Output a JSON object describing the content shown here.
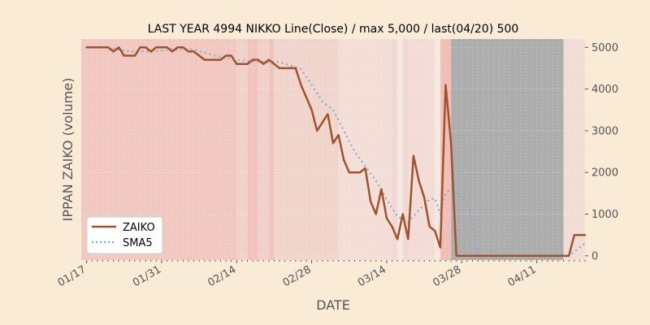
{
  "chart_data": {
    "type": "line",
    "title": "LAST YEAR 4994 NIKKO Line(Close) / max 5,000 / last(04/20) 500",
    "xlabel": "DATE",
    "ylabel": "IPPAN ZAIKO (volume)",
    "ylim": [
      -100,
      5200
    ],
    "yticks": [
      0,
      1000,
      2000,
      3000,
      4000,
      5000
    ],
    "ytick_labels": [
      "0",
      "1000",
      "2000",
      "3000",
      "4000",
      "5000"
    ],
    "x_range_days": [
      -1,
      93
    ],
    "xticks": [
      {
        "day": 0,
        "label": "01/17"
      },
      {
        "day": 14,
        "label": "01/31"
      },
      {
        "day": 28,
        "label": "02/14"
      },
      {
        "day": 42,
        "label": "02/28"
      },
      {
        "day": 56,
        "label": "03/14"
      },
      {
        "day": 70,
        "label": "03/28"
      },
      {
        "day": 84,
        "label": "04/11"
      }
    ],
    "legend_position": "lower-left",
    "series": [
      {
        "name": "ZAIKO",
        "color": "#a0522d",
        "style": "solid",
        "points": [
          [
            0,
            5000
          ],
          [
            1,
            5000
          ],
          [
            2,
            5000
          ],
          [
            3,
            5000
          ],
          [
            4,
            5000
          ],
          [
            5,
            4900
          ],
          [
            6,
            5000
          ],
          [
            7,
            4800
          ],
          [
            8,
            4800
          ],
          [
            9,
            4800
          ],
          [
            10,
            5000
          ],
          [
            11,
            5000
          ],
          [
            12,
            4900
          ],
          [
            13,
            5000
          ],
          [
            14,
            5000
          ],
          [
            15,
            5000
          ],
          [
            16,
            4900
          ],
          [
            17,
            5000
          ],
          [
            18,
            5000
          ],
          [
            19,
            4900
          ],
          [
            20,
            4900
          ],
          [
            21,
            4800
          ],
          [
            22,
            4700
          ],
          [
            23,
            4700
          ],
          [
            24,
            4700
          ],
          [
            25,
            4700
          ],
          [
            26,
            4800
          ],
          [
            27,
            4800
          ],
          [
            28,
            4600
          ],
          [
            29,
            4600
          ],
          [
            30,
            4600
          ],
          [
            31,
            4700
          ],
          [
            32,
            4700
          ],
          [
            33,
            4600
          ],
          [
            34,
            4700
          ],
          [
            35,
            4600
          ],
          [
            36,
            4500
          ],
          [
            37,
            4500
          ],
          [
            38,
            4500
          ],
          [
            39,
            4500
          ],
          [
            40,
            4100
          ],
          [
            41,
            3800
          ],
          [
            42,
            3500
          ],
          [
            43,
            3000
          ],
          [
            44,
            3200
          ],
          [
            45,
            3400
          ],
          [
            46,
            2700
          ],
          [
            47,
            2900
          ],
          [
            48,
            2300
          ],
          [
            49,
            2000
          ],
          [
            50,
            2000
          ],
          [
            51,
            2000
          ],
          [
            52,
            2100
          ],
          [
            53,
            1300
          ],
          [
            54,
            1000
          ],
          [
            55,
            1600
          ],
          [
            56,
            900
          ],
          [
            57,
            700
          ],
          [
            58,
            400
          ],
          [
            59,
            1000
          ],
          [
            60,
            400
          ],
          [
            61,
            2400
          ],
          [
            62,
            1800
          ],
          [
            63,
            1400
          ],
          [
            64,
            700
          ],
          [
            65,
            600
          ],
          [
            66,
            200
          ],
          [
            67,
            4100
          ],
          [
            68,
            2700
          ],
          [
            69,
            0
          ],
          [
            70,
            0
          ],
          [
            71,
            0
          ],
          [
            72,
            0
          ],
          [
            73,
            0
          ],
          [
            74,
            0
          ],
          [
            75,
            0
          ],
          [
            76,
            0
          ],
          [
            77,
            0
          ],
          [
            78,
            0
          ],
          [
            79,
            0
          ],
          [
            80,
            0
          ],
          [
            81,
            0
          ],
          [
            82,
            0
          ],
          [
            83,
            0
          ],
          [
            84,
            0
          ],
          [
            85,
            0
          ],
          [
            86,
            0
          ],
          [
            87,
            0
          ],
          [
            88,
            0
          ],
          [
            89,
            0
          ],
          [
            90,
            0
          ],
          [
            91,
            500
          ],
          [
            92,
            500
          ],
          [
            93,
            500
          ]
        ]
      },
      {
        "name": "SMA5",
        "color": "#7fb0cf",
        "style": "dotted",
        "points": [
          [
            4,
            5000
          ],
          [
            8,
            4900
          ],
          [
            12,
            4900
          ],
          [
            16,
            4950
          ],
          [
            20,
            4950
          ],
          [
            24,
            4800
          ],
          [
            28,
            4700
          ],
          [
            32,
            4650
          ],
          [
            36,
            4650
          ],
          [
            40,
            4480
          ],
          [
            42,
            4100
          ],
          [
            44,
            3700
          ],
          [
            46,
            3500
          ],
          [
            48,
            3000
          ],
          [
            50,
            2500
          ],
          [
            52,
            2150
          ],
          [
            54,
            1800
          ],
          [
            56,
            1350
          ],
          [
            58,
            950
          ],
          [
            60,
            800
          ],
          [
            62,
            1100
          ],
          [
            64,
            1350
          ],
          [
            65,
            1380
          ],
          [
            66,
            1000
          ],
          [
            67,
            1500
          ],
          [
            68,
            1600
          ],
          [
            70,
            1400
          ],
          [
            71,
            1350
          ],
          [
            72,
            800
          ],
          [
            73,
            0
          ],
          [
            80,
            0
          ],
          [
            85,
            0
          ],
          [
            88,
            0
          ],
          [
            90,
            0
          ],
          [
            91,
            100
          ],
          [
            92,
            200
          ],
          [
            93,
            300
          ]
        ]
      }
    ],
    "background_bands": [
      {
        "from": -1,
        "to": 28,
        "color": "#f2a89c",
        "opacity": 0.55
      },
      {
        "from": 28,
        "to": 30,
        "color": "#f4c0b4",
        "opacity": 0.6
      },
      {
        "from": 30,
        "to": 32,
        "color": "#f2a89c",
        "opacity": 0.6
      },
      {
        "from": 32,
        "to": 34,
        "color": "#f4b8ac",
        "opacity": 0.55
      },
      {
        "from": 34,
        "to": 35,
        "color": "#f2a89c",
        "opacity": 0.6
      },
      {
        "from": 35,
        "to": 47,
        "color": "#f4c4b8",
        "opacity": 0.6
      },
      {
        "from": 47,
        "to": 57,
        "color": "#f6d7cd",
        "opacity": 0.65
      },
      {
        "from": 57,
        "to": 58,
        "color": "#f4c4b8",
        "opacity": 0.5
      },
      {
        "from": 58,
        "to": 59,
        "color": "#f8e4dc",
        "opacity": 0.7
      },
      {
        "from": 59,
        "to": 60,
        "color": "#f4c4b8",
        "opacity": 0.5
      },
      {
        "from": 60,
        "to": 65,
        "color": "#f6d0c6",
        "opacity": 0.6
      },
      {
        "from": 65,
        "to": 66,
        "color": "#f8e4dc",
        "opacity": 0.6
      },
      {
        "from": 66,
        "to": 68,
        "color": "#f2a89c",
        "opacity": 0.7
      },
      {
        "from": 68,
        "to": 89,
        "color": "#a9a9a9",
        "opacity": 0.95
      },
      {
        "from": 89,
        "to": 93.6,
        "color": "#f4d0c6",
        "opacity": 0.6
      }
    ]
  }
}
